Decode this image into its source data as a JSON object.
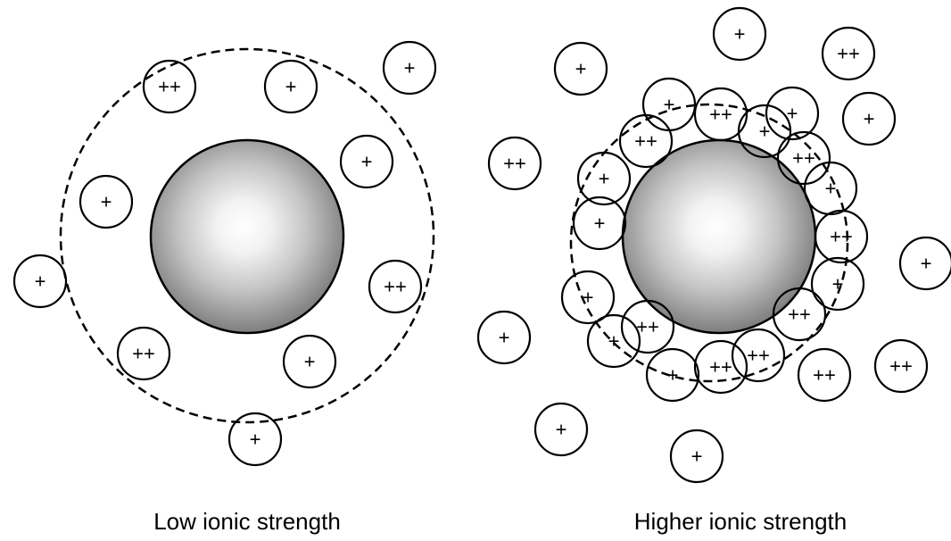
{
  "panels": [
    {
      "label": "Low ionic strength",
      "ions": [
        "++",
        "+",
        "+",
        "+",
        "+",
        "+",
        "++",
        "++",
        "+",
        "+"
      ]
    },
    {
      "label": "Higher ionic strength",
      "ions": [
        "+",
        "++",
        "+",
        "+",
        "++",
        "+",
        "+",
        "++",
        "++",
        "+",
        "+",
        "+",
        "++",
        "+",
        "+",
        "++",
        "++",
        "+",
        "+",
        "+",
        "++",
        "+",
        "+",
        "++",
        "++",
        "+",
        "++",
        "++",
        "+"
      ]
    }
  ]
}
